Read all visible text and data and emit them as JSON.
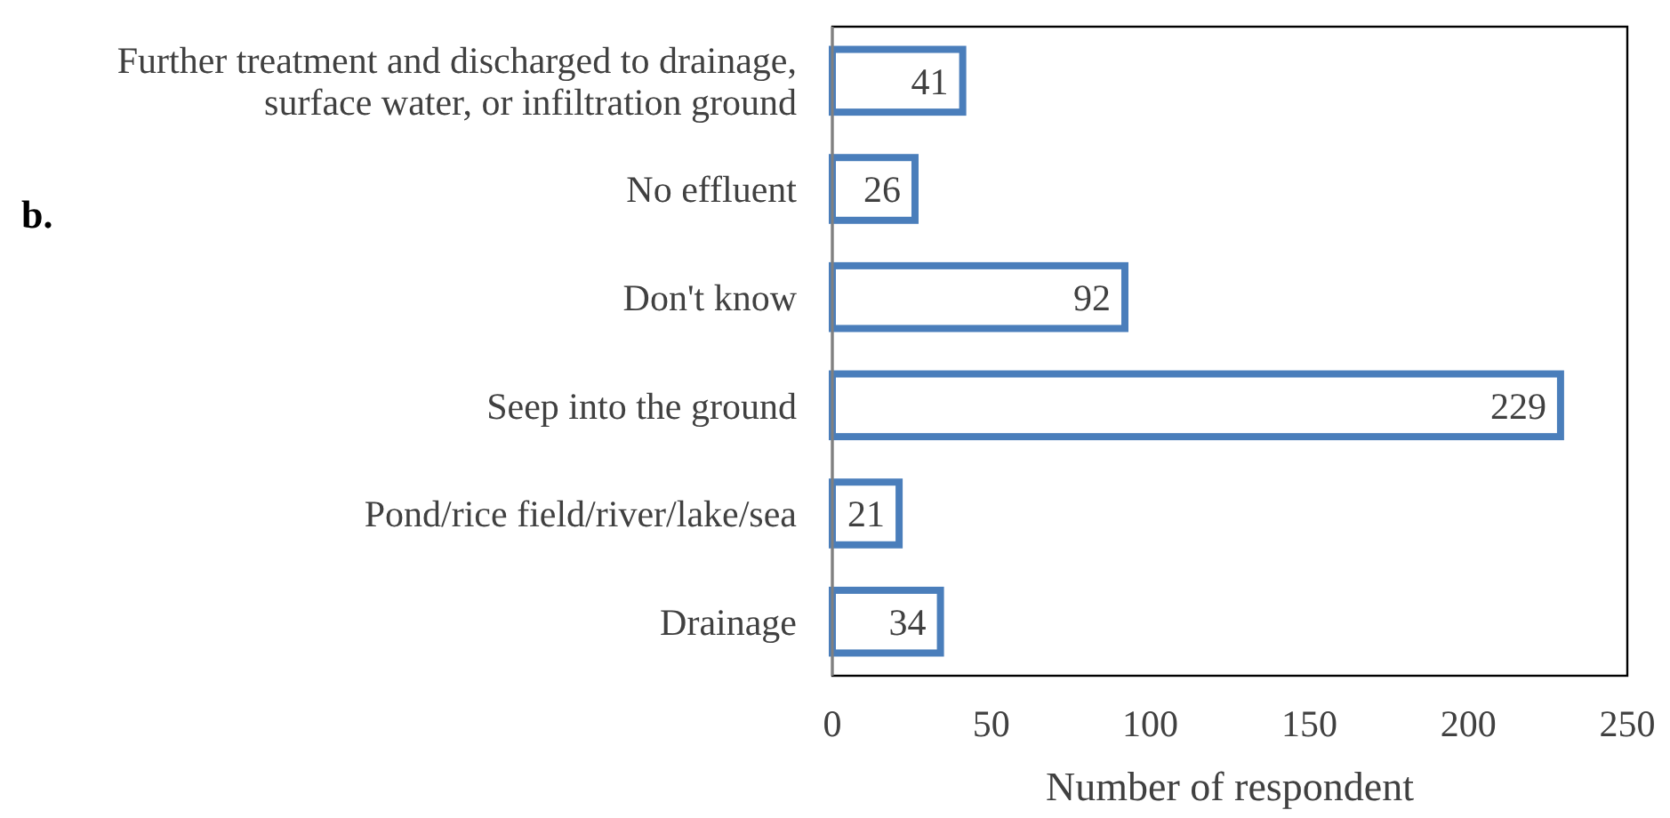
{
  "chart_data": {
    "type": "bar",
    "orientation": "horizontal",
    "categories": [
      "Further treatment and discharged to drainage, surface water, or infiltration ground",
      "No effluent",
      "Don't know",
      "Seep into the ground",
      "Pond/rice field/river/lake/sea",
      "Drainage"
    ],
    "values": [
      41,
      26,
      92,
      229,
      21,
      34
    ],
    "color": "#4a7ebb",
    "data_labels": true,
    "xlabel": "Number of respondent",
    "xlim": [
      0,
      250
    ],
    "xticks": [
      0,
      50,
      100,
      150,
      200,
      250
    ],
    "annotations": [
      "b."
    ],
    "grid": false
  }
}
